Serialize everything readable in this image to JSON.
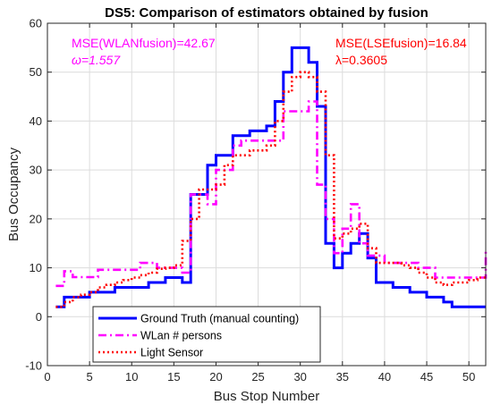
{
  "chart_data": {
    "type": "line",
    "title": "DS5: Comparison of estimators obtained by fusion",
    "xlabel": "Bus Stop Number",
    "ylabel": "Bus Occupancy",
    "xlim": [
      0,
      52
    ],
    "ylim": [
      -10,
      60
    ],
    "xticks": [
      0,
      5,
      10,
      15,
      20,
      25,
      30,
      35,
      40,
      45,
      50
    ],
    "yticks": [
      -10,
      0,
      10,
      20,
      30,
      40,
      50,
      60
    ],
    "grid": true,
    "legend_position": "bottom-left",
    "annotations": [
      {
        "text": "MSE(WLANfusion)=42.67",
        "color": "#ff00ff",
        "id": "mse-wlan"
      },
      {
        "text": "ω=1.557",
        "color": "#ff00ff",
        "id": "omega"
      },
      {
        "text": "MSE(LSEfusion)=16.84",
        "color": "#ff0000",
        "id": "mse-lse"
      },
      {
        "text": "λ=0.3605",
        "color": "#ff0000",
        "id": "lambda"
      }
    ],
    "series": [
      {
        "name": "Ground Truth (manual counting)",
        "color": "#0000ff",
        "style": "solid",
        "step": true,
        "x": [
          1,
          2,
          3,
          4,
          5,
          6,
          7,
          8,
          9,
          10,
          11,
          12,
          13,
          14,
          15,
          16,
          17,
          18,
          19,
          20,
          21,
          22,
          23,
          24,
          25,
          26,
          27,
          28,
          29,
          30,
          31,
          32,
          33,
          34,
          35,
          36,
          37,
          38,
          39,
          40,
          41,
          42,
          43,
          44,
          45,
          46,
          47,
          48,
          49,
          50,
          51,
          52
        ],
        "y": [
          2,
          4,
          4,
          4,
          5,
          5,
          5,
          6,
          6,
          6,
          6,
          7,
          7,
          8,
          8,
          7,
          25,
          25,
          31,
          33,
          33,
          37,
          37,
          38,
          38,
          39,
          44,
          50,
          55,
          55,
          52,
          43,
          15,
          10,
          13,
          15,
          17,
          12,
          7,
          7,
          6,
          6,
          5,
          5,
          4,
          4,
          3,
          2,
          2,
          2,
          2,
          2
        ]
      },
      {
        "name": "WLan # persons",
        "color": "#ff00ff",
        "style": "dashdot",
        "step": true,
        "x": [
          1,
          2,
          3,
          4,
          5,
          6,
          7,
          8,
          9,
          10,
          11,
          12,
          13,
          14,
          15,
          16,
          17,
          18,
          19,
          20,
          21,
          22,
          23,
          24,
          25,
          26,
          27,
          28,
          29,
          30,
          31,
          32,
          33,
          34,
          35,
          36,
          37,
          38,
          39,
          40,
          41,
          42,
          43,
          44,
          45,
          46,
          47,
          48,
          49,
          50,
          51,
          52
        ],
        "y": [
          6.3,
          9.3,
          8.1,
          8.1,
          8.1,
          9.6,
          9.6,
          9.6,
          9.6,
          9.6,
          11,
          11,
          10,
          10,
          10,
          9,
          25,
          25,
          23,
          30,
          30,
          35,
          36,
          36,
          36,
          36,
          36,
          42,
          42,
          42,
          44,
          27,
          20,
          13,
          18,
          23,
          15,
          12.5,
          12.5,
          11,
          11,
          11,
          11,
          10,
          10,
          8,
          8,
          8,
          8,
          8,
          8,
          14
        ]
      },
      {
        "name": "Light Sensor",
        "color": "#ff0000",
        "style": "dotted",
        "step": true,
        "x": [
          1,
          2,
          3,
          4,
          5,
          6,
          7,
          8,
          9,
          10,
          11,
          12,
          13,
          14,
          15,
          16,
          17,
          18,
          19,
          20,
          21,
          22,
          23,
          24,
          25,
          26,
          27,
          28,
          29,
          30,
          31,
          32,
          33,
          34,
          35,
          36,
          37,
          38,
          39,
          40,
          41,
          42,
          43,
          44,
          45,
          46,
          47,
          48,
          49,
          50,
          51,
          52
        ],
        "y": [
          2,
          3,
          4,
          4.5,
          5,
          6,
          6.5,
          7,
          7.5,
          8,
          8.5,
          9,
          9.8,
          10,
          10.5,
          15.5,
          20,
          26,
          26,
          27,
          31,
          33,
          33,
          34,
          34,
          35,
          40,
          46,
          49,
          50,
          49,
          46,
          33,
          16,
          17,
          18,
          19,
          14,
          11,
          11,
          11,
          10.5,
          10,
          9,
          8,
          7,
          6.5,
          7,
          7,
          7.5,
          8,
          8
        ]
      }
    ]
  }
}
